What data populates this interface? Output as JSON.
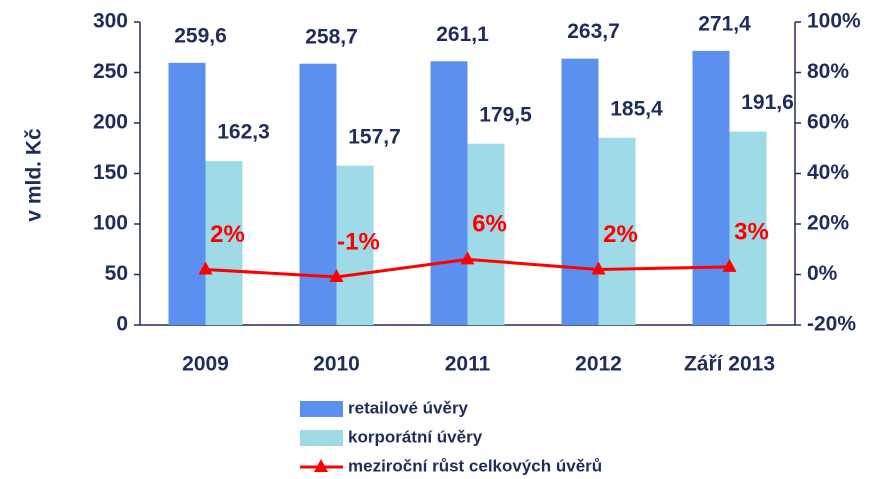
{
  "chart_data": {
    "type": "bar",
    "categories": [
      "2009",
      "2010",
      "2011",
      "2012",
      "Září 2013"
    ],
    "ylabel": "v mld. Kč",
    "ylim": [
      0,
      300
    ],
    "yticks": [
      0,
      50,
      100,
      150,
      200,
      250,
      300
    ],
    "y2lim": [
      -20,
      100
    ],
    "y2ticks": [
      {
        "value": -20,
        "label": "-20%"
      },
      {
        "value": 0,
        "label": "0%"
      },
      {
        "value": 20,
        "label": "20%"
      },
      {
        "value": 40,
        "label": "40%"
      },
      {
        "value": 60,
        "label": "60%"
      },
      {
        "value": 80,
        "label": "80%"
      },
      {
        "value": 100,
        "label": "100%"
      }
    ],
    "series": [
      {
        "name": "retailové úvěry",
        "color": "#5b8ff0",
        "values": [
          259.6,
          258.7,
          261.1,
          263.7,
          271.4
        ],
        "value_labels": [
          "259,6",
          "258,7",
          "261,1",
          "263,7",
          "271,4"
        ]
      },
      {
        "name": "korporátní úvěry",
        "color": "#9edbe7",
        "values": [
          162.3,
          157.7,
          179.5,
          185.4,
          191.6
        ],
        "value_labels": [
          "162,3",
          "157,7",
          "179,5",
          "185,4",
          "191,6"
        ]
      },
      {
        "name": "meziroční růst celkových úvěrů",
        "color": "#ff0000",
        "type": "line",
        "axis": "y2",
        "values": [
          2,
          -1,
          6,
          2,
          3
        ],
        "value_labels": [
          "2%",
          "-1%",
          "6%",
          "2%",
          "3%"
        ]
      }
    ]
  }
}
